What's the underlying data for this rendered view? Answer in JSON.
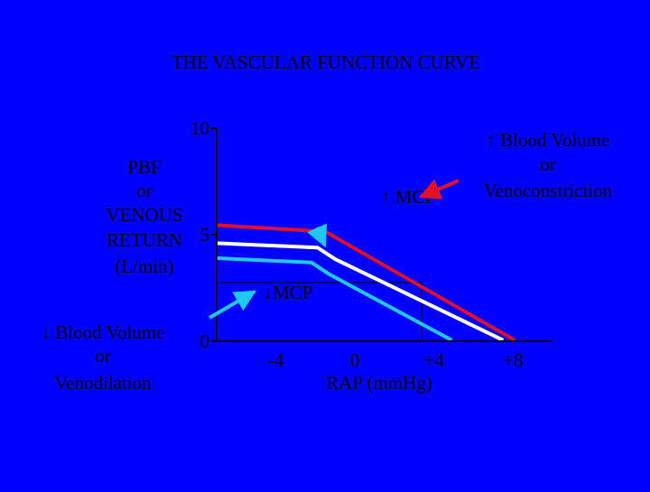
{
  "slide": {
    "title": "THE VASCULAR FUNCTION CURVE",
    "background_color": "#0000ff"
  },
  "chart_data": {
    "type": "line",
    "title": "THE VASCULAR FUNCTION CURVE",
    "ylabel_lines": [
      "PBF",
      "or",
      "VENOUS",
      "RETURN",
      "(L/min)"
    ],
    "xlabel": "RAP (mmHg)",
    "x_ticks": [
      {
        "value": -4,
        "label": "-4"
      },
      {
        "value": 0,
        "label": "0"
      },
      {
        "value": 4,
        "label": "+4"
      },
      {
        "value": 8,
        "label": "+8"
      }
    ],
    "y_ticks": [
      {
        "value": 0,
        "label": "0"
      },
      {
        "value": 5,
        "label": "5"
      },
      {
        "value": 10,
        "label": "10"
      }
    ],
    "xlim": [
      -7,
      10
    ],
    "ylim": [
      0,
      10
    ],
    "grid": false,
    "series": [
      {
        "key": "increased",
        "color": "#e0102a",
        "points": [
          [
            -7,
            5.45
          ],
          [
            -1.5,
            5.15
          ],
          [
            8.1,
            0.05
          ]
        ]
      },
      {
        "key": "normal",
        "color": "#ffffff",
        "points": [
          [
            -7,
            4.6
          ],
          [
            -1.9,
            4.4
          ],
          [
            -1.0,
            3.85
          ],
          [
            7.5,
            0.05
          ]
        ]
      },
      {
        "key": "decreased",
        "color": "#1ec8f0",
        "points": [
          [
            -7,
            3.9
          ],
          [
            -2.2,
            3.7
          ],
          [
            -1.3,
            3.15
          ],
          [
            4.9,
            0.05
          ]
        ]
      }
    ],
    "reference_lines": [
      {
        "from": [
          -7,
          2.75
        ],
        "to": [
          3.4,
          2.75
        ]
      },
      {
        "from": [
          3.4,
          2.75
        ],
        "to": [
          3.4,
          0
        ]
      }
    ],
    "annotations": {
      "mcp_up": "↑ MCP",
      "mcp_down": "↓MCP",
      "increase_lines": [
        "↑ Blood Volume",
        "or",
        "Venoconstriction"
      ],
      "decrease_lines": [
        "↓ Blood Volume",
        "or",
        "Venodilation"
      ]
    },
    "arrows": [
      {
        "key": "arrow-to-red-curve",
        "color": "#e0102a"
      },
      {
        "key": "arrow-to-cyan-curve",
        "color": "#1ec8f0"
      },
      {
        "key": "arrow-to-mcp",
        "color": "#1ec8f0"
      }
    ]
  }
}
